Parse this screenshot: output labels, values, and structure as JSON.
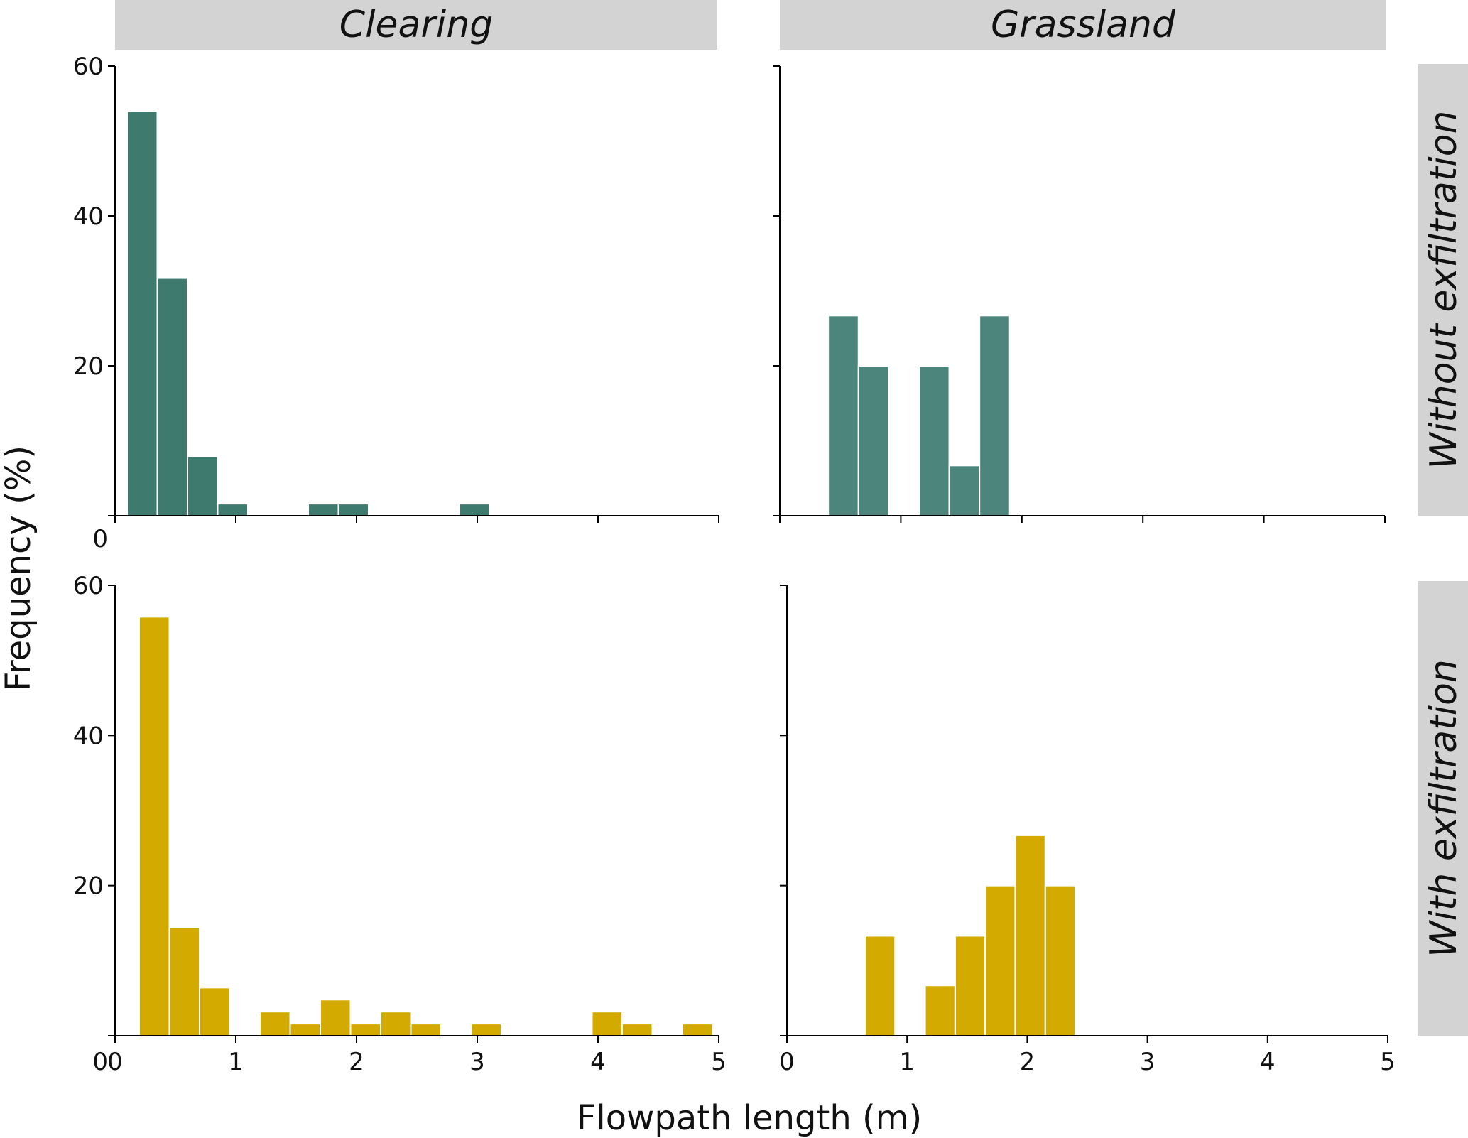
{
  "chart_data": {
    "type": "bar",
    "layout": "facet-grid 2x2 histograms",
    "column_strips": [
      "Clearing",
      "Grassland"
    ],
    "row_strips": [
      "Without exfiltration",
      "With  exfiltration"
    ],
    "xlabel": "Flowpath length (m)",
    "ylabel": "Frequency (%)",
    "xlim": [
      0,
      5
    ],
    "ylim": [
      0,
      60
    ],
    "x_ticks": [
      "0",
      "1",
      "2",
      "3",
      "4",
      "5"
    ],
    "y_ticks": [
      "0",
      "20",
      "40",
      "60"
    ],
    "strip_color": "#d3d3d3",
    "grid": false,
    "panels": [
      {
        "column": "Clearing",
        "row": "Without exfiltration",
        "color": "#3e7b6e",
        "bin_width": 0.25,
        "bins": [
          {
            "start": 0.1,
            "value": 54
          },
          {
            "start": 0.35,
            "value": 31.7
          },
          {
            "start": 0.6,
            "value": 7.9
          },
          {
            "start": 0.85,
            "value": 1.6
          },
          {
            "start": 1.6,
            "value": 1.6
          },
          {
            "start": 1.85,
            "value": 1.6
          },
          {
            "start": 2.85,
            "value": 1.6
          }
        ]
      },
      {
        "column": "Grassland",
        "row": "Without exfiltration",
        "color": "#4c857b",
        "bin_width": 0.25,
        "bins": [
          {
            "start": 0.4,
            "value": 26.7
          },
          {
            "start": 0.65,
            "value": 20
          },
          {
            "start": 1.15,
            "value": 20
          },
          {
            "start": 1.4,
            "value": 6.7
          },
          {
            "start": 1.65,
            "value": 26.7
          }
        ]
      },
      {
        "column": "Clearing",
        "row": "With  exfiltration",
        "color": "#d3ab00",
        "bin_width": 0.25,
        "bins": [
          {
            "start": 0.2,
            "value": 55.8
          },
          {
            "start": 0.45,
            "value": 14.4
          },
          {
            "start": 0.7,
            "value": 6.4
          },
          {
            "start": 1.2,
            "value": 3.2
          },
          {
            "start": 1.45,
            "value": 1.6
          },
          {
            "start": 1.7,
            "value": 4.8
          },
          {
            "start": 1.95,
            "value": 1.6
          },
          {
            "start": 2.2,
            "value": 3.2
          },
          {
            "start": 2.45,
            "value": 1.6
          },
          {
            "start": 2.95,
            "value": 1.6
          },
          {
            "start": 3.95,
            "value": 3.2
          },
          {
            "start": 4.2,
            "value": 1.6
          },
          {
            "start": 4.7,
            "value": 1.6
          }
        ]
      },
      {
        "column": "Grassland",
        "row": "With  exfiltration",
        "color": "#d3ab00",
        "bin_width": 0.25,
        "bins": [
          {
            "start": 0.65,
            "value": 13.3
          },
          {
            "start": 1.15,
            "value": 6.7
          },
          {
            "start": 1.4,
            "value": 13.3
          },
          {
            "start": 1.65,
            "value": 20
          },
          {
            "start": 1.9,
            "value": 26.7
          },
          {
            "start": 2.15,
            "value": 20
          }
        ]
      }
    ]
  }
}
